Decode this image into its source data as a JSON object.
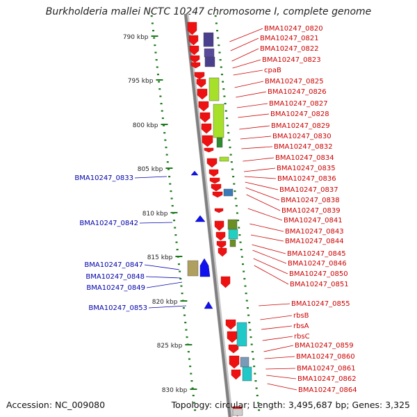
{
  "title": "Burkholderia mallei NCTC 10247 chromosome I, complete genome",
  "accession": "Accession: NC_009080",
  "topology": "Topology: circular; Length: 3,495,687 bp; Genes: 3,325",
  "colors": {
    "axis": "#808080",
    "tick": "#1c7a1c",
    "forward_gene": "#ee1111",
    "reverse_gene": "#1111ee",
    "label_forward": "#cc0000",
    "label_reverse": "#0000aa"
  },
  "kbp_labels": [
    "790 kbp",
    "795 kbp",
    "800 kbp",
    "805 kbp",
    "810 kbp",
    "815 kbp",
    "820 kbp",
    "825 kbp",
    "830 kbp"
  ],
  "right_labels": [
    "BMA10247_0820",
    "BMA10247_0821",
    "BMA10247_0822",
    "BMA10247_0823",
    "cpaB",
    "BMA10247_0825",
    "BMA10247_0826",
    "BMA10247_0827",
    "BMA10247_0828",
    "BMA10247_0829",
    "BMA10247_0830",
    "BMA10247_0832",
    "BMA10247_0834",
    "BMA10247_0835",
    "BMA10247_0836",
    "BMA10247_0837",
    "BMA10247_0838",
    "BMA10247_0839",
    "BMA10247_0841",
    "BMA10247_0843",
    "BMA10247_0844",
    "BMA10247_0845",
    "BMA10247_0846",
    "BMA10247_0850",
    "BMA10247_0851",
    "BMA10247_0855",
    "rbsB",
    "rbsA",
    "rbsC",
    "BMA10247_0859",
    "BMA10247_0860",
    "BMA10247_0861",
    "BMA10247_0862",
    "BMA10247_0864"
  ],
  "left_labels": [
    "BMA10247_0833",
    "BMA10247_0842",
    "BMA10247_0847",
    "BMA10247_0848",
    "BMA10247_0849",
    "BMA10247_0853"
  ]
}
